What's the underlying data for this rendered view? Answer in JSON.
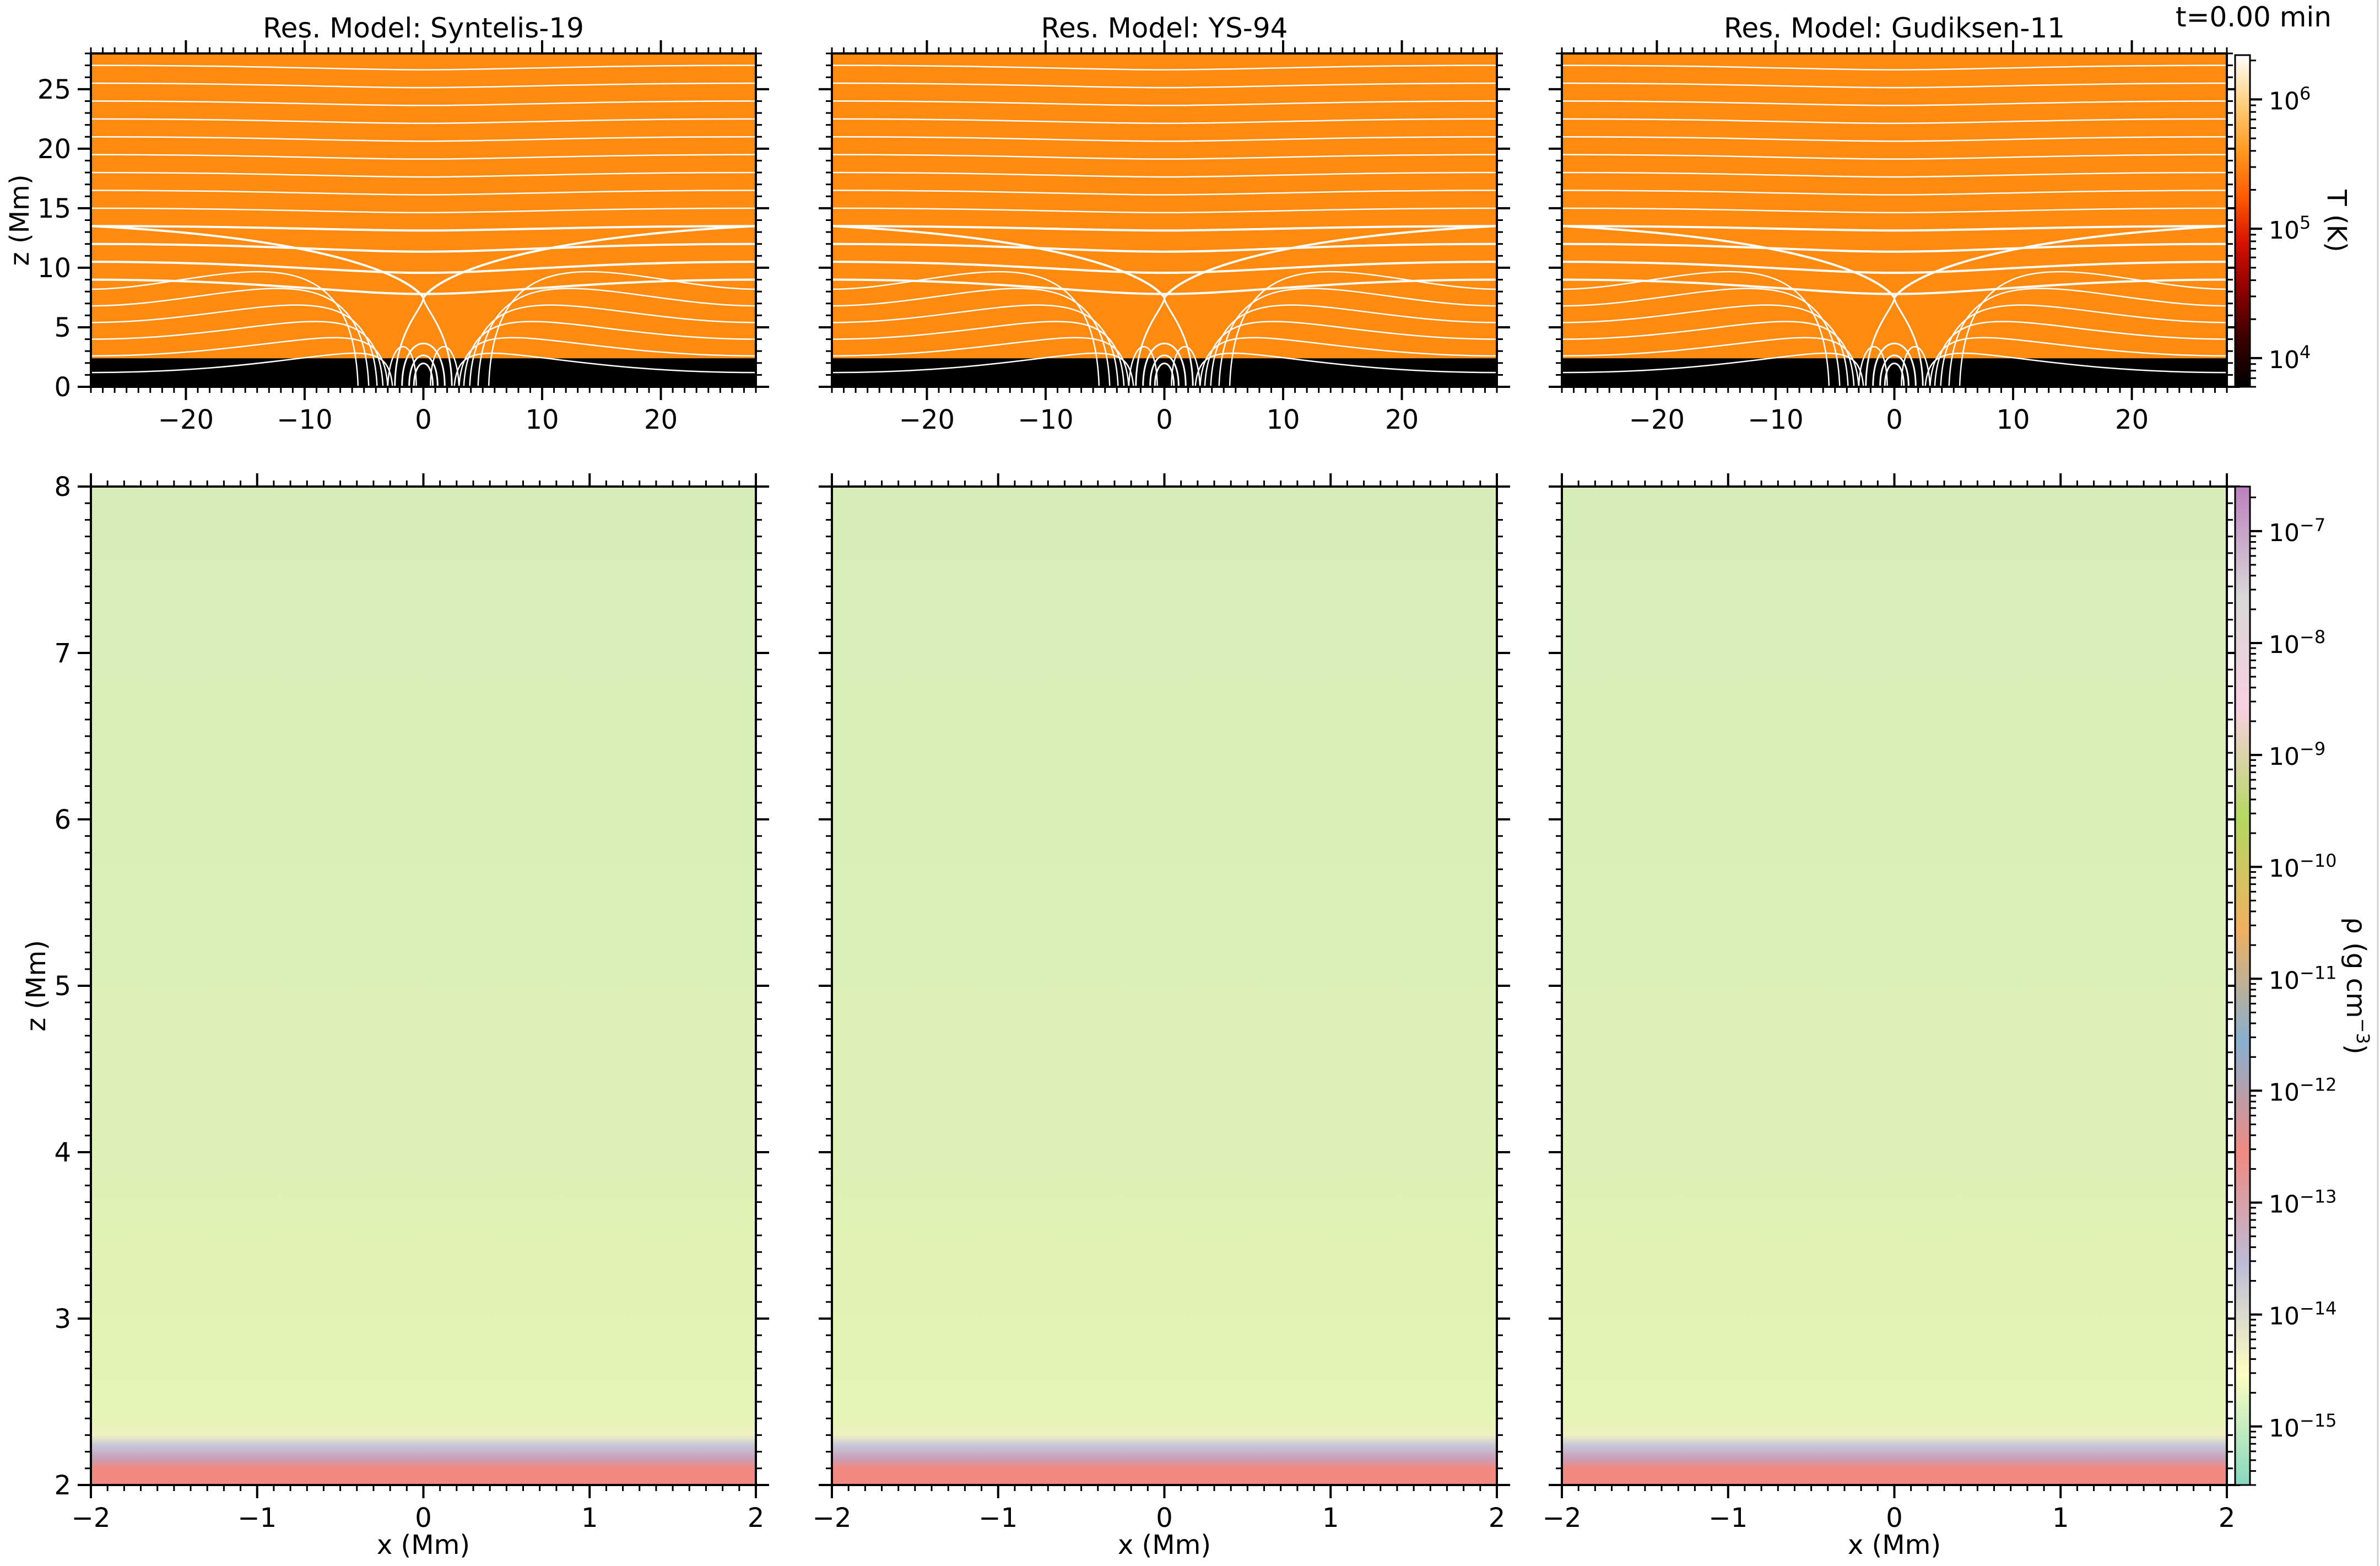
{
  "figure": {
    "time_label": "t=0.00 min"
  },
  "chart_data": [
    {
      "type": "heatmap",
      "panel": "temperature",
      "titles": [
        "Res. Model: Syntelis-19",
        "Res. Model: YS-94",
        "Res. Model: Gudiksen-11"
      ],
      "xlim": [
        -28,
        28
      ],
      "ylim": [
        0,
        28
      ],
      "xticks": [
        -20,
        -10,
        0,
        10,
        20
      ],
      "xtick_labels": [
        "−20",
        "−10",
        "0",
        "10",
        "20"
      ],
      "yticks": [
        0,
        5,
        10,
        15,
        20,
        25
      ],
      "ytick_labels": [
        "0",
        "5",
        "10",
        "15",
        "20",
        "25"
      ],
      "ylabel": "z (Mm)",
      "xlabel": "",
      "layers": [
        {
          "z_range": [
            0,
            2.4
          ],
          "temperature_K": 10000,
          "color": "#000000"
        },
        {
          "z_range": [
            2.4,
            28
          ],
          "temperature_K": 1000000,
          "color": "#ff8a10"
        }
      ],
      "field_lines": {
        "color": "#ffffff",
        "arcade_center_x": 0,
        "null_point": [
          0,
          7.5
        ]
      },
      "colorbar": {
        "label": "T (K)",
        "scale": "log",
        "range": [
          6000,
          2200000
        ],
        "ticks": [
          10000,
          100000,
          1000000
        ],
        "tick_labels": [
          "10",
          "10",
          "10"
        ],
        "tick_exponents": [
          "4",
          "5",
          "6"
        ],
        "colormap": [
          "#000000",
          "#3a0000",
          "#8a0000",
          "#d41000",
          "#ff5a00",
          "#ff9a20",
          "#ffd080",
          "#ffffff"
        ]
      }
    },
    {
      "type": "heatmap",
      "panel": "density",
      "titles": [
        "",
        "",
        ""
      ],
      "xlim": [
        -2,
        2
      ],
      "ylim": [
        2,
        8
      ],
      "xticks": [
        -2,
        -1,
        0,
        1,
        2
      ],
      "xtick_labels": [
        "−2",
        "−1",
        "0",
        "1",
        "2"
      ],
      "yticks": [
        2,
        3,
        4,
        5,
        6,
        7,
        8
      ],
      "ytick_labels": [
        "2",
        "3",
        "4",
        "5",
        "6",
        "7",
        "8"
      ],
      "ylabel": "z (Mm)",
      "xlabel": "x (Mm)",
      "color_stops": [
        {
          "z": 2.0,
          "color": "#f08a80"
        },
        {
          "z": 2.1,
          "color": "#f08a80"
        },
        {
          "z": 2.16,
          "color": "#c8a0b8"
        },
        {
          "z": 2.24,
          "color": "#c8c8d8"
        },
        {
          "z": 2.3,
          "color": "#f0f0c0"
        },
        {
          "z": 2.4,
          "color": "#e4f4b4"
        },
        {
          "z": 3.3,
          "color": "#e2f2b4"
        },
        {
          "z": 4.5,
          "color": "#dcf0b8"
        },
        {
          "z": 8.0,
          "color": "#d8edb8"
        }
      ],
      "colorbar": {
        "label": "ρ (g cm",
        "label_exponent": "−3",
        "label_close": ")",
        "scale": "log",
        "range": [
          3e-16,
          2.5e-07
        ],
        "ticks": [
          1e-15,
          1e-14,
          1e-13,
          1e-12,
          1e-11,
          1e-10,
          1e-09,
          1e-08,
          1e-07
        ],
        "tick_labels": [
          "10",
          "10",
          "10",
          "10",
          "10",
          "10",
          "10",
          "10",
          "10"
        ],
        "tick_exponents": [
          "−15",
          "−14",
          "−13",
          "−12",
          "−11",
          "−10",
          "−9",
          "−8",
          "−7"
        ],
        "colormap": [
          "#86d8c0",
          "#fefec0",
          "#bcbcd8",
          "#f08a80",
          "#88b0d0",
          "#f0b060",
          "#b4d860",
          "#f8d0e0",
          "#d8d8d8",
          "#bc80bd"
        ]
      }
    }
  ]
}
